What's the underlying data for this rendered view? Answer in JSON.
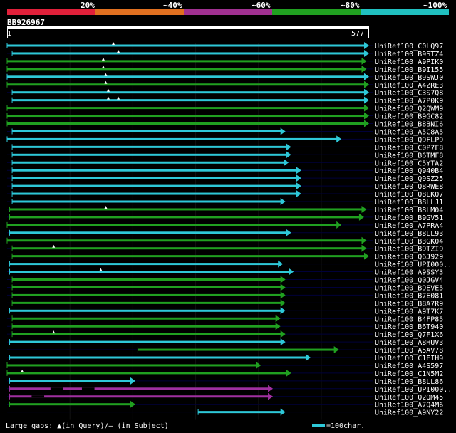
{
  "header": {
    "percent_labels": [
      "20%",
      "~40%",
      "~60%",
      "~80%",
      "~100%"
    ],
    "bands": [
      "#e0203a",
      "#e07020",
      "#a03090",
      "#20a020",
      "#20c0c0"
    ]
  },
  "query": {
    "name": "BB926967",
    "start": "1",
    "end": "577",
    "length": 577
  },
  "legend": {
    "gaps_text": "Large gaps: ▲(in Query)/– (in Subject)",
    "scale_text": "=100char."
  },
  "colors": {
    "cyan": "#2ec8d8",
    "green": "#20a020",
    "purple": "#a030a0",
    "guide": "#00003a",
    "vline": "#111"
  },
  "hits": [
    {
      "name": "UniRef100_C0LQ97",
      "start": 1,
      "end": 577,
      "color": "cyan",
      "query_gaps": [
        170
      ]
    },
    {
      "name": "UniRef100_B9STZ4",
      "start": 9,
      "end": 577,
      "color": "cyan",
      "query_gaps": [
        178
      ]
    },
    {
      "name": "UniRef100_A9PIK0",
      "start": 1,
      "end": 573,
      "color": "green",
      "query_gaps": [
        154
      ]
    },
    {
      "name": "UniRef100_B9I155",
      "start": 1,
      "end": 573,
      "color": "green",
      "query_gaps": [
        154
      ]
    },
    {
      "name": "UniRef100_B9SWJ0",
      "start": 1,
      "end": 577,
      "color": "cyan",
      "query_gaps": [
        158
      ]
    },
    {
      "name": "UniRef100_A4ZRE3",
      "start": 1,
      "end": 577,
      "color": "green",
      "query_gaps": [
        158
      ]
    },
    {
      "name": "UniRef100_C3S7Q8",
      "start": 9,
      "end": 577,
      "color": "cyan",
      "query_gaps": [
        162
      ]
    },
    {
      "name": "UniRef100_A7P0K9",
      "start": 9,
      "end": 577,
      "color": "cyan",
      "query_gaps": [
        162,
        178
      ]
    },
    {
      "name": "UniRef100_Q2QWM9",
      "start": 1,
      "end": 577,
      "color": "green",
      "query_gaps": []
    },
    {
      "name": "UniRef100_B9GC82",
      "start": 1,
      "end": 577,
      "color": "green",
      "query_gaps": []
    },
    {
      "name": "UniRef100_B8BNI6",
      "start": 1,
      "end": 577,
      "color": "green",
      "query_gaps": []
    },
    {
      "name": "UniRef100_A5C8A5",
      "start": 9,
      "end": 444,
      "color": "cyan",
      "query_gaps": []
    },
    {
      "name": "UniRef100_Q9FLP9",
      "start": 1,
      "end": 533,
      "color": "cyan",
      "query_gaps": []
    },
    {
      "name": "UniRef100_C0P7F8",
      "start": 9,
      "end": 453,
      "color": "cyan",
      "query_gaps": []
    },
    {
      "name": "UniRef100_B6TMF8",
      "start": 9,
      "end": 453,
      "color": "cyan",
      "query_gaps": []
    },
    {
      "name": "UniRef100_C5YTA2",
      "start": 9,
      "end": 449,
      "color": "cyan",
      "query_gaps": []
    },
    {
      "name": "UniRef100_Q940B4",
      "start": 9,
      "end": 469,
      "color": "cyan",
      "query_gaps": []
    },
    {
      "name": "UniRef100_Q9SZ25",
      "start": 9,
      "end": 469,
      "color": "cyan",
      "query_gaps": []
    },
    {
      "name": "UniRef100_Q8RWE8",
      "start": 9,
      "end": 469,
      "color": "cyan",
      "query_gaps": []
    },
    {
      "name": "UniRef100_Q8LKQ7",
      "start": 9,
      "end": 469,
      "color": "cyan",
      "query_gaps": []
    },
    {
      "name": "UniRef100_B8LLJ1",
      "start": 9,
      "end": 444,
      "color": "cyan",
      "query_gaps": []
    },
    {
      "name": "UniRef100_B8LM04",
      "start": 5,
      "end": 573,
      "color": "green",
      "query_gaps": [
        158
      ]
    },
    {
      "name": "UniRef100_B9GV51",
      "start": 5,
      "end": 569,
      "color": "green",
      "query_gaps": []
    },
    {
      "name": "UniRef100_A7PRA4",
      "start": 1,
      "end": 533,
      "color": "green",
      "query_gaps": []
    },
    {
      "name": "UniRef100_B8LL93",
      "start": 5,
      "end": 453,
      "color": "cyan",
      "query_gaps": []
    },
    {
      "name": "UniRef100_B3GK04",
      "start": 1,
      "end": 573,
      "color": "green",
      "query_gaps": []
    },
    {
      "name": "UniRef100_B9TZI9",
      "start": 9,
      "end": 573,
      "color": "green",
      "query_gaps": [
        75
      ]
    },
    {
      "name": "UniRef100_Q6J929",
      "start": 9,
      "end": 577,
      "color": "green",
      "query_gaps": []
    },
    {
      "name": "UniRef100_UPI000..",
      "start": 5,
      "end": 440,
      "color": "cyan",
      "query_gaps": []
    },
    {
      "name": "UniRef100_A9SSY3",
      "start": 5,
      "end": 457,
      "color": "cyan",
      "query_gaps": [
        150
      ]
    },
    {
      "name": "UniRef100_Q0JGV4",
      "start": 9,
      "end": 444,
      "color": "green",
      "query_gaps": []
    },
    {
      "name": "UniRef100_B9EVE5",
      "start": 9,
      "end": 444,
      "color": "green",
      "query_gaps": []
    },
    {
      "name": "UniRef100_B7E081",
      "start": 9,
      "end": 444,
      "color": "green",
      "query_gaps": []
    },
    {
      "name": "UniRef100_B8A7R9",
      "start": 9,
      "end": 444,
      "color": "green",
      "query_gaps": []
    },
    {
      "name": "UniRef100_A9T7K7",
      "start": 5,
      "end": 444,
      "color": "cyan",
      "query_gaps": []
    },
    {
      "name": "UniRef100_B4FP85",
      "start": 9,
      "end": 436,
      "color": "green",
      "query_gaps": []
    },
    {
      "name": "UniRef100_B6T940",
      "start": 9,
      "end": 436,
      "color": "green",
      "query_gaps": []
    },
    {
      "name": "UniRef100_Q7F1X6",
      "start": 9,
      "end": 444,
      "color": "green",
      "query_gaps": [
        75
      ]
    },
    {
      "name": "UniRef100_A8HUV3",
      "start": 5,
      "end": 444,
      "color": "cyan",
      "query_gaps": []
    },
    {
      "name": "UniRef100_A5AV78",
      "start": 209,
      "end": 529,
      "color": "green",
      "query_gaps": []
    },
    {
      "name": "UniRef100_C1EIH9",
      "start": 5,
      "end": 484,
      "color": "cyan",
      "query_gaps": []
    },
    {
      "name": "UniRef100_A4S597",
      "start": 1,
      "end": 405,
      "color": "green",
      "query_gaps": []
    },
    {
      "name": "UniRef100_C1N5M2",
      "start": 1,
      "end": 453,
      "color": "green",
      "query_gaps": [
        25
      ]
    },
    {
      "name": "UniRef100_B8LL86",
      "start": 5,
      "end": 205,
      "color": "cyan",
      "query_gaps": []
    },
    {
      "name": "UniRef100_UPI000..",
      "start": 5,
      "end": 424,
      "color": "purple",
      "query_gaps": [],
      "subject_gaps": [
        [
          70,
          90
        ],
        [
          120,
          140
        ]
      ]
    },
    {
      "name": "UniRef100_Q2QM45",
      "start": 5,
      "end": 424,
      "color": "purple",
      "query_gaps": [],
      "subject_gaps": [
        [
          40,
          60
        ]
      ]
    },
    {
      "name": "UniRef100_A7Q4M6",
      "start": 5,
      "end": 205,
      "color": "green",
      "query_gaps": []
    },
    {
      "name": "UniRef100_A9NY22",
      "start": 305,
      "end": 444,
      "color": "cyan",
      "query_gaps": []
    }
  ]
}
